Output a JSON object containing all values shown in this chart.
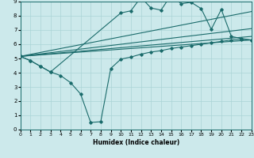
{
  "xlabel": "Humidex (Indice chaleur)",
  "xlim": [
    0,
    23
  ],
  "ylim": [
    0,
    9
  ],
  "xticks": [
    0,
    1,
    2,
    3,
    4,
    5,
    6,
    7,
    8,
    9,
    10,
    11,
    12,
    13,
    14,
    15,
    16,
    17,
    18,
    19,
    20,
    21,
    22,
    23
  ],
  "yticks": [
    0,
    1,
    2,
    3,
    4,
    5,
    6,
    7,
    8,
    9
  ],
  "bg_color": "#cce9eb",
  "line_color": "#1a6b6b",
  "grid_color": "#aad4d6",
  "smooth_line1": [
    [
      0,
      5.15
    ],
    [
      23,
      6.3
    ]
  ],
  "smooth_line2": [
    [
      0,
      5.15
    ],
    [
      23,
      6.55
    ]
  ],
  "smooth_line3": [
    [
      0,
      5.15
    ],
    [
      23,
      7.1
    ]
  ],
  "smooth_line4": [
    [
      0,
      5.15
    ],
    [
      23,
      8.3
    ]
  ],
  "jagged_lower_x": [
    0,
    1,
    2,
    3,
    4,
    5,
    6,
    7,
    8,
    9,
    10,
    11,
    12,
    13,
    14,
    15,
    16,
    17,
    18,
    19,
    20,
    21,
    22,
    23
  ],
  "jagged_lower_y": [
    5.15,
    4.85,
    4.45,
    4.05,
    3.8,
    3.3,
    2.5,
    0.5,
    0.55,
    4.3,
    4.95,
    5.1,
    5.3,
    5.45,
    5.55,
    5.7,
    5.8,
    5.9,
    6.0,
    6.1,
    6.2,
    6.3,
    6.35,
    6.3
  ],
  "jagged_upper_x": [
    0,
    1,
    2,
    3,
    10,
    11,
    12,
    13,
    14,
    15,
    16,
    17,
    18,
    19,
    20,
    21,
    22,
    23
  ],
  "jagged_upper_y": [
    5.15,
    4.85,
    4.45,
    4.05,
    8.2,
    8.35,
    9.3,
    8.55,
    8.4,
    9.45,
    8.85,
    8.95,
    8.5,
    7.05,
    8.45,
    6.55,
    6.4,
    6.3
  ]
}
